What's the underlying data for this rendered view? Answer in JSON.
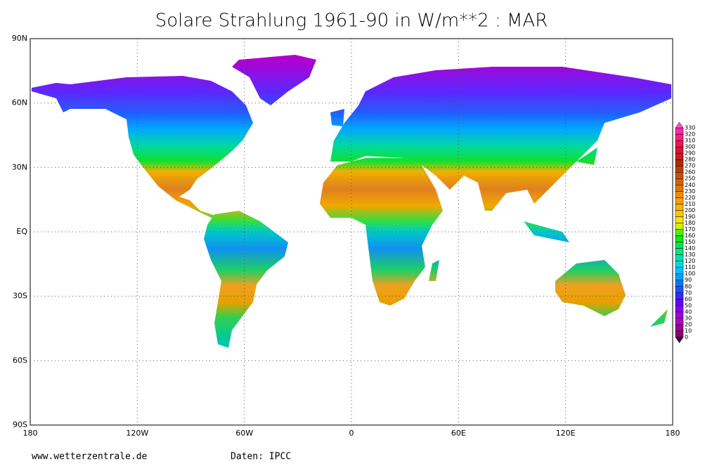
{
  "title": "Solare Strahlung 1961-90 in W/m**2 : MAR",
  "map": {
    "lat_labels": [
      "90N",
      "60N",
      "30N",
      "EQ",
      "30S",
      "60S",
      "90S"
    ],
    "lon_labels": [
      "180",
      "120W",
      "60W",
      "0",
      "60E",
      "120E",
      "180"
    ]
  },
  "colorbar": {
    "levels": [
      0,
      10,
      20,
      30,
      40,
      50,
      60,
      70,
      80,
      90,
      100,
      110,
      120,
      130,
      140,
      150,
      160,
      170,
      180,
      190,
      200,
      210,
      220,
      230,
      240,
      250,
      260,
      270,
      280,
      290,
      300,
      310,
      320,
      330
    ],
    "colors": [
      "#8c006e",
      "#a000a0",
      "#b400c8",
      "#a000e0",
      "#8200f0",
      "#6400ff",
      "#3c28ff",
      "#1e50ff",
      "#0078ff",
      "#00a0ff",
      "#00c0ff",
      "#00d8e0",
      "#00e0b4",
      "#00e68c",
      "#00e650",
      "#14e614",
      "#50f000",
      "#d2f000",
      "#ffe600",
      "#ffc800",
      "#ffb400",
      "#ffa000",
      "#f08c00",
      "#e07800",
      "#d26400",
      "#c85000",
      "#be3c00",
      "#b42800",
      "#c81e1e",
      "#dc1432",
      "#f01450",
      "#ff1e78",
      "#ff28b4"
    ]
  },
  "footer": {
    "site": "www.wetterzentrale.de",
    "source": "Daten: IPCC"
  }
}
